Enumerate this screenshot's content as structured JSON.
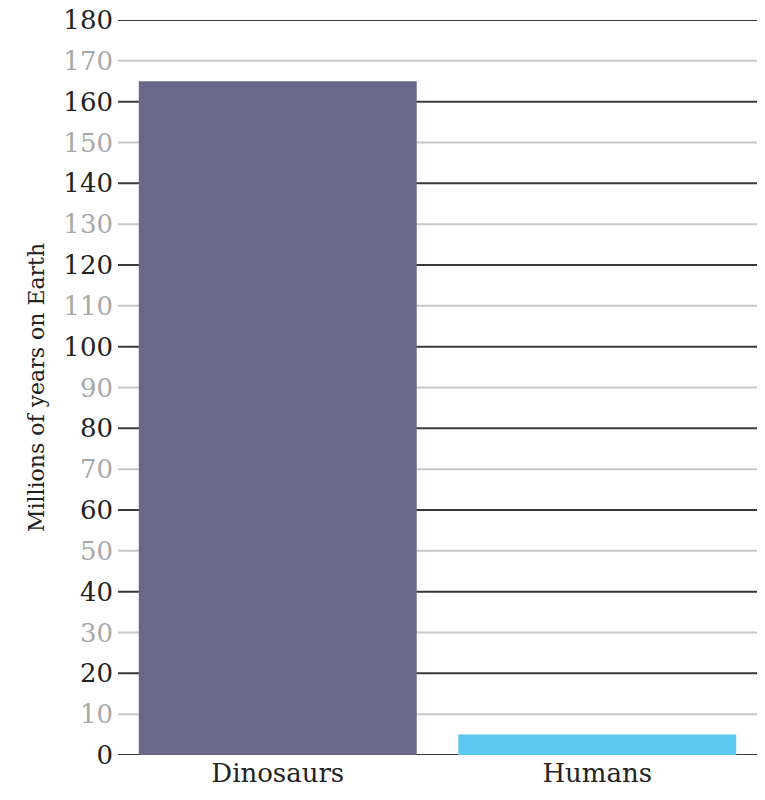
{
  "chart_data": {
    "type": "bar",
    "y_label": "Millions of years on Earth",
    "categories": [
      "Dinosaurs",
      "Humans"
    ],
    "values": [
      165,
      5
    ],
    "colors": [
      "#6b6789",
      "#5bc8ef"
    ],
    "ylim": [
      0,
      180
    ],
    "yticks": [
      0,
      10,
      20,
      30,
      40,
      50,
      60,
      70,
      80,
      90,
      100,
      110,
      120,
      130,
      140,
      150,
      160,
      170,
      180
    ],
    "grid": true
  }
}
